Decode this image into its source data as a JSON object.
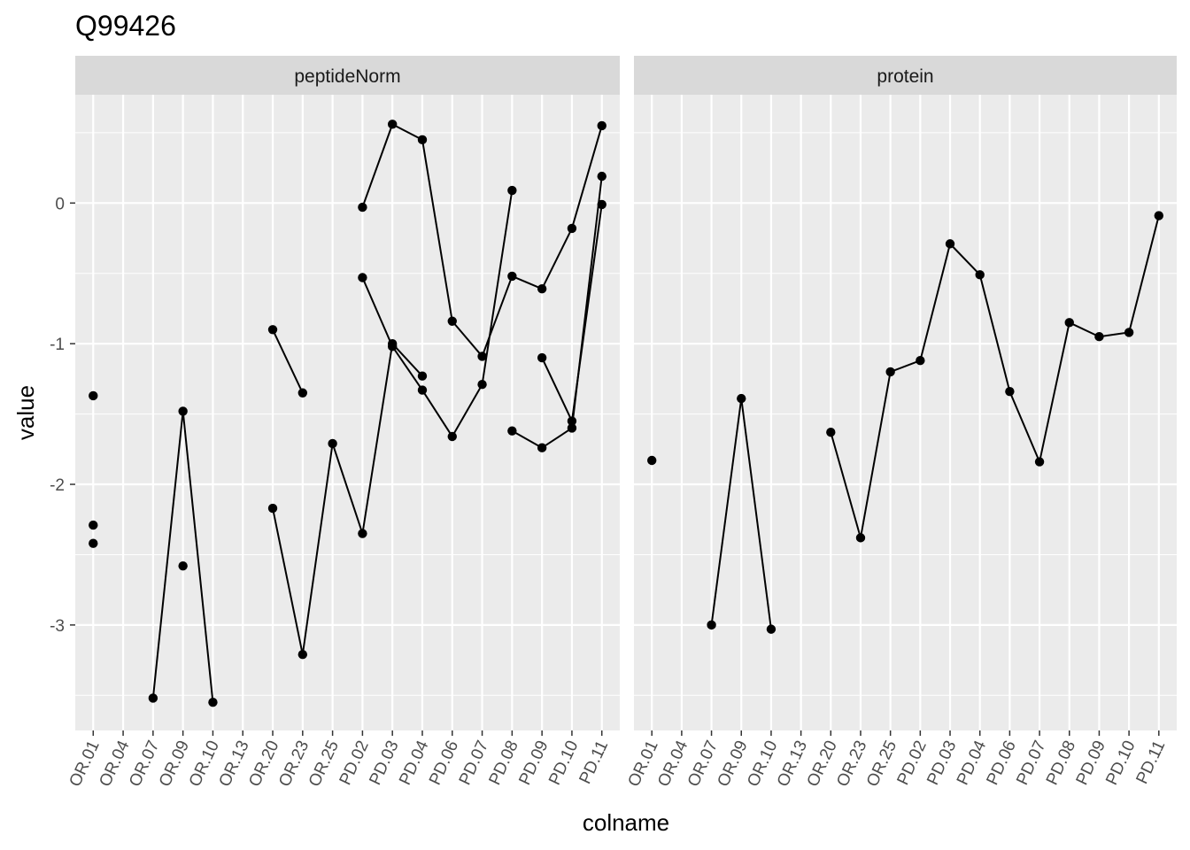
{
  "chart_data": {
    "type": "line",
    "title": "Q99426",
    "xlabel": "colname",
    "ylabel": "value",
    "categories": [
      "OR.01",
      "OR.04",
      "OR.07",
      "OR.09",
      "OR.10",
      "OR.13",
      "OR.20",
      "OR.23",
      "OR.25",
      "PD.02",
      "PD.03",
      "PD.04",
      "PD.06",
      "PD.07",
      "PD.08",
      "PD.09",
      "PD.10",
      "PD.11"
    ],
    "ylim": [
      -3.75,
      0.77
    ],
    "yticks": [
      -3,
      -2,
      -1,
      0
    ],
    "ytick_labels": [
      "-3",
      "-2",
      "-1",
      "0"
    ],
    "grid": true,
    "panels": [
      {
        "strip": "peptideNorm",
        "series": [
          {
            "values": [
              -1.37,
              null,
              null,
              null,
              null,
              null,
              null,
              null,
              null,
              null,
              null,
              null,
              null,
              null,
              null,
              null,
              null,
              null
            ]
          },
          {
            "values": [
              -2.29,
              null,
              -3.52,
              -1.48,
              -3.55,
              null,
              -0.9,
              -1.35,
              null,
              null,
              null,
              null,
              null,
              null,
              null,
              null,
              null,
              null
            ]
          },
          {
            "values": [
              -2.42,
              null,
              null,
              -2.58,
              null,
              null,
              -2.17,
              -3.21,
              -1.71,
              -2.35,
              -1.0,
              -1.23,
              null,
              null,
              -1.62,
              -1.74,
              -1.6,
              0.19
            ]
          },
          {
            "values": [
              null,
              null,
              null,
              null,
              null,
              null,
              null,
              null,
              null,
              -0.53,
              -1.02,
              -1.33,
              -1.66,
              -1.29,
              0.09,
              null,
              null,
              null
            ]
          },
          {
            "values": [
              null,
              null,
              null,
              null,
              null,
              null,
              null,
              null,
              null,
              -0.03,
              0.56,
              0.45,
              -0.84,
              -1.09,
              -0.52,
              -0.61,
              -0.18,
              0.55
            ]
          },
          {
            "values": [
              null,
              null,
              null,
              null,
              null,
              null,
              null,
              null,
              null,
              null,
              null,
              null,
              null,
              null,
              null,
              -1.1,
              -1.55,
              -0.01
            ]
          }
        ]
      },
      {
        "strip": "protein",
        "series": [
          {
            "values": [
              -1.83,
              null,
              -3.0,
              -1.39,
              -3.03,
              null,
              -1.63,
              -2.38,
              -1.2,
              -1.12,
              -0.29,
              -0.51,
              -1.34,
              -1.84,
              -0.85,
              -0.95,
              -0.92,
              -0.09
            ]
          }
        ]
      }
    ]
  }
}
